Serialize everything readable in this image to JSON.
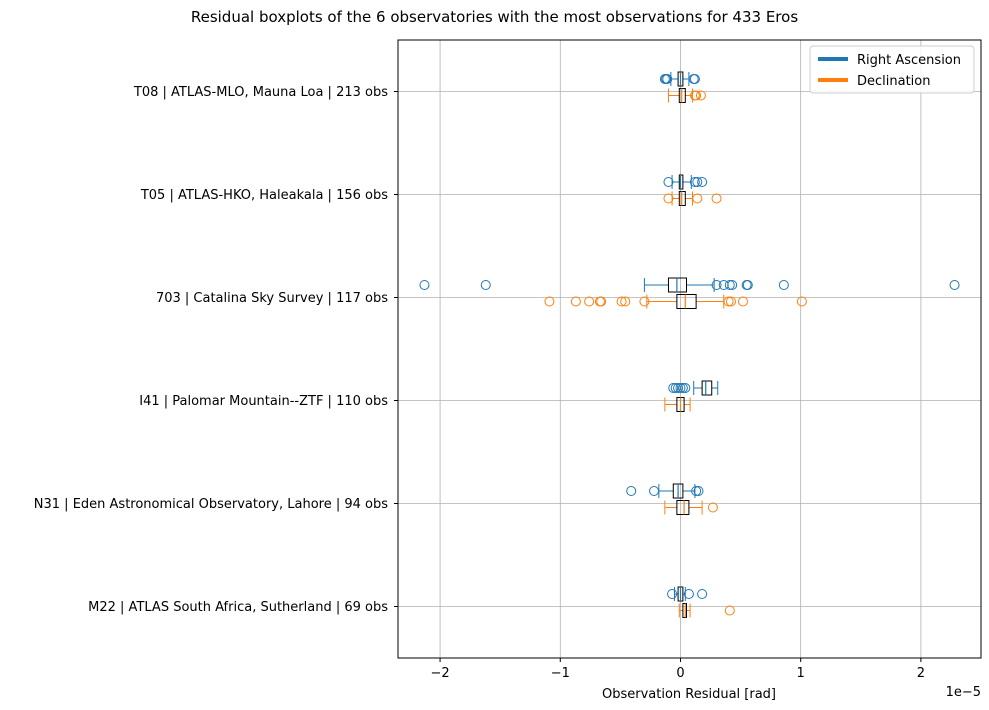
{
  "chart_data": {
    "type": "boxplot",
    "orientation": "horizontal",
    "title": "Residual boxplots of the 6 observatories with the most observations for 433 Eros",
    "xlabel": "Observation Residual [rad]",
    "xscale_label": "1e−5",
    "scale_factor": 1e-05,
    "xlim": [
      -2.35,
      2.5
    ],
    "xticks": [
      -2,
      -1,
      0,
      1,
      2
    ],
    "xtick_labels": [
      "−2",
      "−1",
      "0",
      "1",
      "2"
    ],
    "grid": true,
    "legend_position": "top-right",
    "series": [
      {
        "name": "Right Ascension",
        "color": "#1f77b4"
      },
      {
        "name": "Declination",
        "color": "#ff7f0e"
      }
    ],
    "categories": [
      {
        "label": "T08 | ATLAS-MLO, Mauna Loa | 213 obs",
        "ra": {
          "whislo": -0.08,
          "q1": -0.02,
          "med": 0.0,
          "q3": 0.02,
          "whishi": 0.07,
          "fliers": [
            -0.13,
            -0.12,
            -0.11,
            0.11,
            0.12
          ]
        },
        "dec": {
          "whislo": -0.1,
          "q1": -0.01,
          "med": 0.01,
          "q3": 0.04,
          "whishi": 0.1,
          "fliers": [
            0.12,
            0.13,
            0.17
          ]
        }
      },
      {
        "label": "T05 | ATLAS-HKO, Haleakala | 156 obs",
        "ra": {
          "whislo": -0.07,
          "q1": -0.01,
          "med": 0.0,
          "q3": 0.02,
          "whishi": 0.09,
          "fliers": [
            -0.1,
            0.12,
            0.14,
            0.18
          ]
        },
        "dec": {
          "whislo": -0.07,
          "q1": -0.01,
          "med": 0.01,
          "q3": 0.04,
          "whishi": 0.1,
          "fliers": [
            -0.1,
            0.14,
            0.3
          ]
        }
      },
      {
        "label": "703 | Catalina Sky Survey | 117 obs",
        "ra": {
          "whislo": -0.3,
          "q1": -0.1,
          "med": -0.03,
          "q3": 0.05,
          "whishi": 0.28,
          "fliers": [
            -2.13,
            -1.62,
            0.3,
            0.36,
            0.41,
            0.43,
            0.55,
            0.56,
            0.86,
            2.28
          ]
        },
        "dec": {
          "whislo": -0.28,
          "q1": -0.03,
          "med": 0.04,
          "q3": 0.13,
          "whishi": 0.36,
          "fliers": [
            -1.09,
            -0.87,
            -0.76,
            -0.67,
            -0.66,
            -0.49,
            -0.46,
            -0.3,
            0.4,
            0.42,
            0.52,
            1.01
          ]
        }
      },
      {
        "label": "I41 | Palomar Mountain--ZTF | 110 obs",
        "ra": {
          "whislo": 0.11,
          "q1": 0.18,
          "med": 0.21,
          "q3": 0.26,
          "whishi": 0.31,
          "fliers": [
            -0.06,
            -0.04,
            -0.02,
            0.0,
            0.02,
            0.04
          ]
        },
        "dec": {
          "whislo": -0.13,
          "q1": -0.03,
          "med": 0.0,
          "q3": 0.03,
          "whishi": 0.08,
          "fliers": []
        }
      },
      {
        "label": "N31 | Eden Astronomical Observatory, Lahore | 94 obs",
        "ra": {
          "whislo": -0.18,
          "q1": -0.06,
          "med": -0.02,
          "q3": 0.02,
          "whishi": 0.12,
          "fliers": [
            -0.41,
            -0.22,
            0.13,
            0.15
          ]
        },
        "dec": {
          "whislo": -0.13,
          "q1": -0.03,
          "med": 0.03,
          "q3": 0.07,
          "whishi": 0.18,
          "fliers": [
            0.27
          ]
        }
      },
      {
        "label": "M22 | ATLAS South Africa, Sutherland | 69 obs",
        "ra": {
          "whislo": -0.05,
          "q1": -0.02,
          "med": 0.0,
          "q3": 0.02,
          "whishi": 0.04,
          "fliers": [
            -0.07,
            0.07,
            0.18
          ]
        },
        "dec": {
          "whislo": -0.01,
          "q1": 0.02,
          "med": 0.04,
          "q3": 0.05,
          "whishi": 0.08,
          "fliers": [
            0.41
          ]
        }
      }
    ]
  }
}
